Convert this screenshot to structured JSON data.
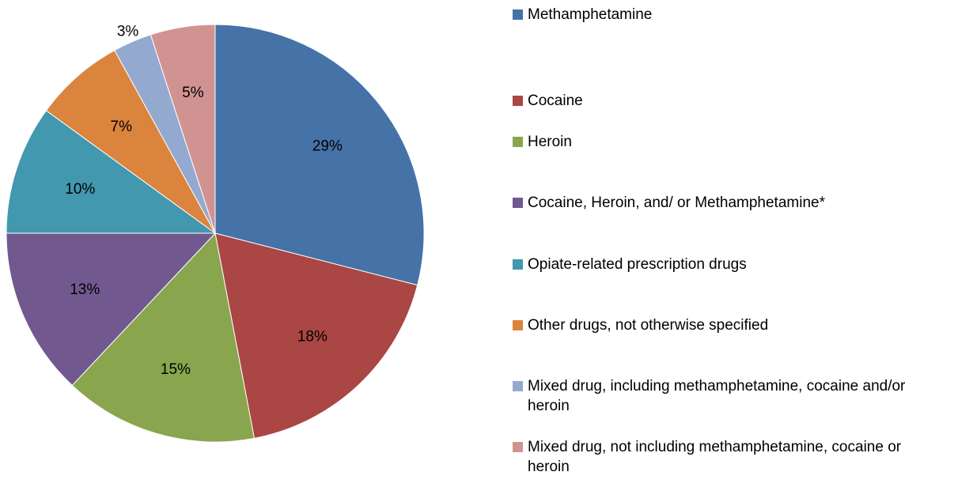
{
  "chart_data": {
    "type": "pie",
    "title": "",
    "legend_position": "right",
    "slices": [
      {
        "name": "Methamphetamine",
        "value": 29,
        "label": "29%",
        "color": "#4572A7"
      },
      {
        "name": "Cocaine",
        "value": 18,
        "label": "18%",
        "color": "#AA4643"
      },
      {
        "name": "Heroin",
        "value": 15,
        "label": "15%",
        "color": "#89A54E"
      },
      {
        "name": "Cocaine, Heroin, and/ or Methamphetamine*",
        "value": 13,
        "label": "13%",
        "color": "#71588F"
      },
      {
        "name": "Opiate-related prescription drugs",
        "value": 10,
        "label": "10%",
        "color": "#4198AF"
      },
      {
        "name": "Other drugs, not otherwise specified",
        "value": 7,
        "label": "7%",
        "color": "#DB843D"
      },
      {
        "name": "Mixed drug, including methamphetamine, cocaine and/or heroin",
        "value": 3,
        "label": "3%",
        "color": "#93A9CF"
      },
      {
        "name": "Mixed drug, not including methamphetamine, cocaine or heroin",
        "value": 5,
        "label": "5%",
        "color": "#D19392"
      }
    ]
  }
}
